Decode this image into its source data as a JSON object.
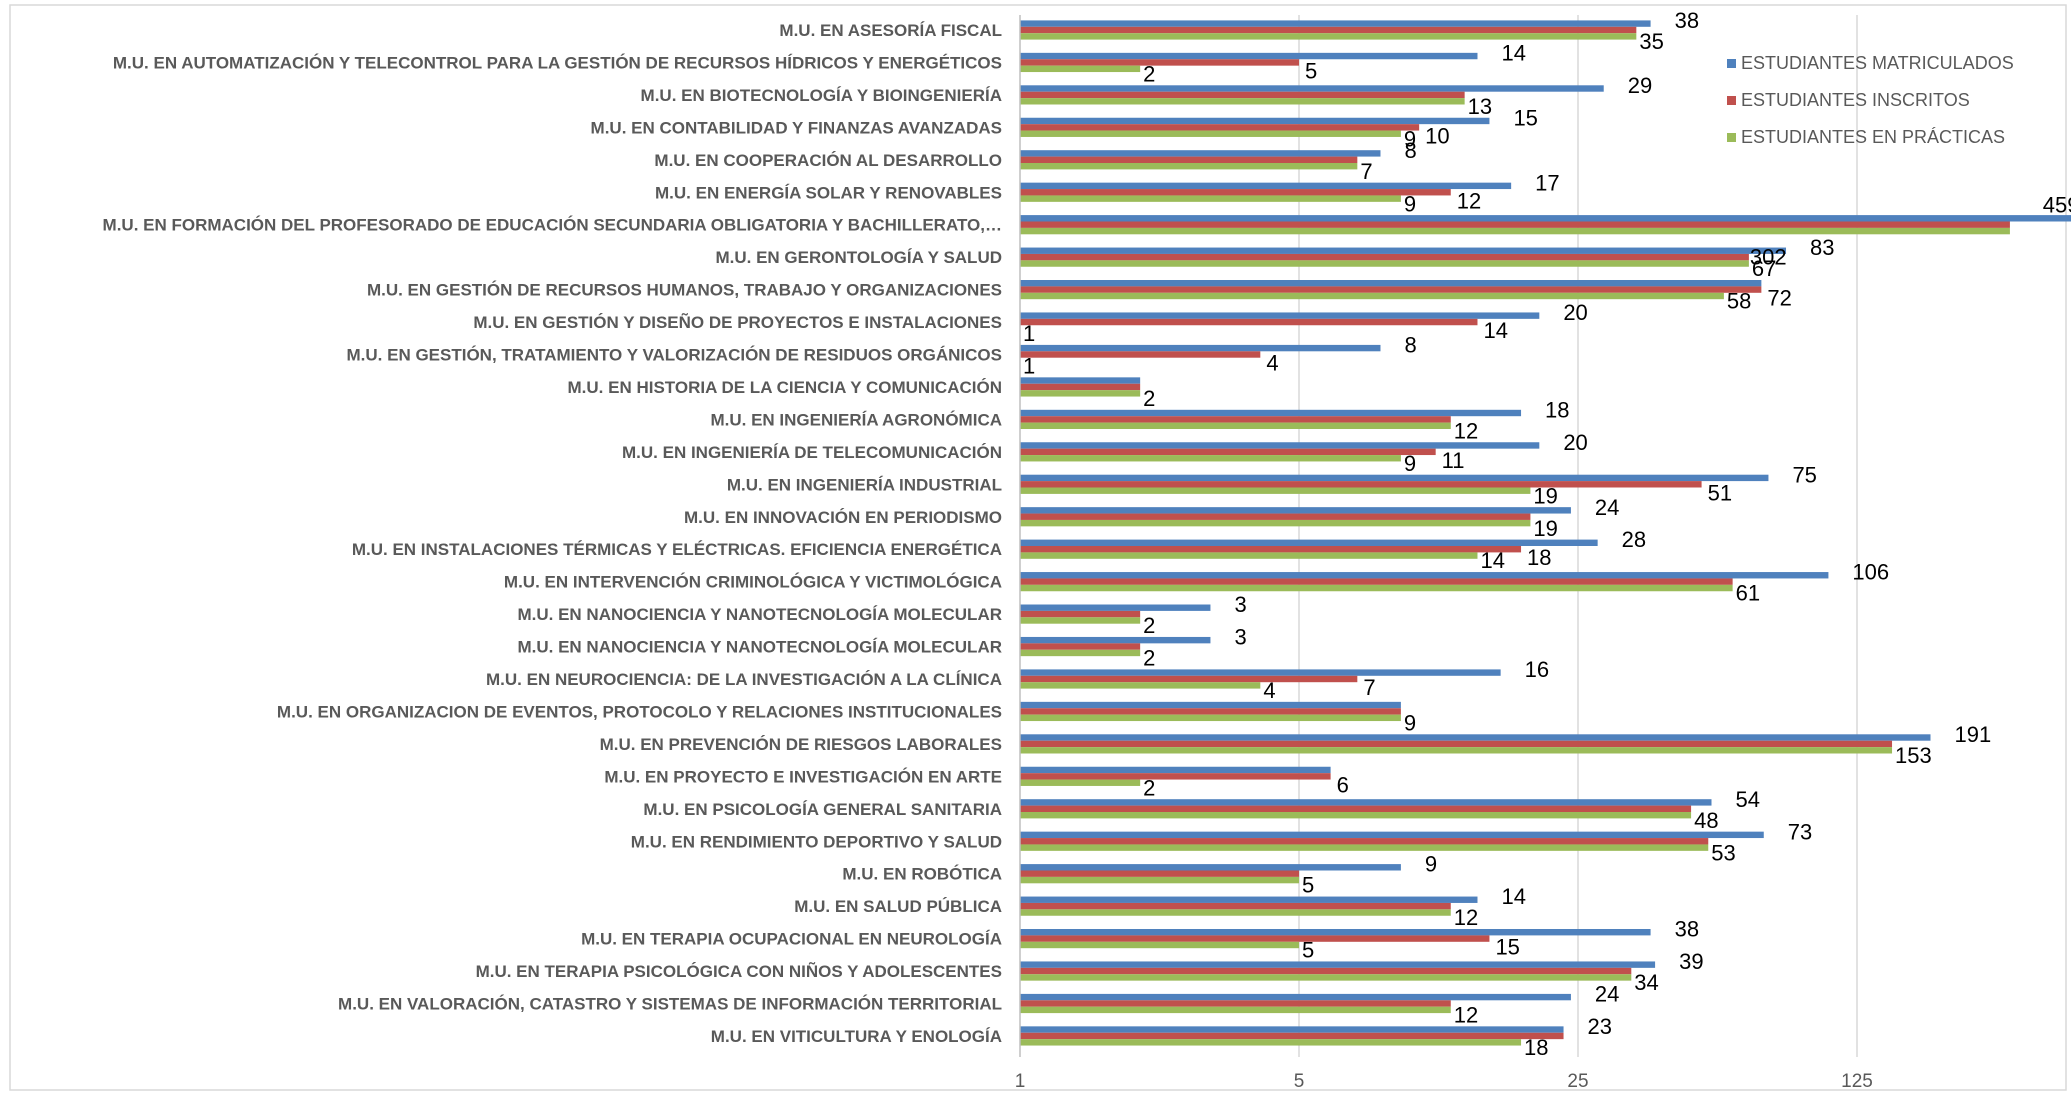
{
  "chart_data": {
    "type": "bar",
    "orientation": "horizontal",
    "x_scale": "log5",
    "xlim": [
      1,
      625
    ],
    "x_ticks": [
      "1",
      "5",
      "25",
      "125"
    ],
    "grid": "vertical",
    "legend_position": "top-right",
    "categories": [
      "M.U. EN ASESORÍA FISCAL",
      "M.U. EN AUTOMATIZACIÓN Y TELECONTROL PARA LA GESTIÓN DE RECURSOS HÍDRICOS Y ENERGÉTICOS",
      "M.U. EN BIOTECNOLOGÍA Y BIOINGENIERÍA",
      "M.U. EN CONTABILIDAD Y FINANZAS AVANZADAS",
      "M.U. EN COOPERACIÓN AL DESARROLLO",
      "M.U. EN ENERGÍA SOLAR Y RENOVABLES",
      "M.U. EN FORMACIÓN DEL PROFESORADO DE EDUCACIÓN SECUNDARIA OBLIGATORIA Y BACHILLERATO,…",
      "M.U. EN GERONTOLOGÍA Y SALUD",
      "M.U. EN GESTIÓN DE RECURSOS HUMANOS, TRABAJO Y ORGANIZACIONES",
      "M.U. EN GESTIÓN Y DISEÑO DE PROYECTOS E INSTALACIONES",
      "M.U. EN GESTIÓN, TRATAMIENTO Y VALORIZACIÓN DE RESIDUOS ORGÁNICOS",
      "M.U. EN HISTORIA DE LA CIENCIA Y COMUNICACIÓN",
      "M.U. EN INGENIERÍA AGRONÓMICA",
      "M.U. EN INGENIERÍA DE TELECOMUNICACIÓN",
      "M.U. EN INGENIERÍA INDUSTRIAL",
      "M.U. EN INNOVACIÓN EN PERIODISMO",
      "M.U. EN INSTALACIONES TÉRMICAS Y ELÉCTRICAS. EFICIENCIA ENERGÉTICA",
      "M.U. EN INTERVENCIÓN CRIMINOLÓGICA Y VICTIMOLÓGICA",
      "M.U. EN NANOCIENCIA Y NANOTECNOLOGÍA MOLECULAR",
      "M.U. EN NANOCIENCIA Y NANOTECNOLOGÍA MOLECULAR",
      "M.U. EN NEUROCIENCIA: DE LA INVESTIGACIÓN A LA CLÍNICA",
      "M.U. EN ORGANIZACION DE EVENTOS, PROTOCOLO Y RELACIONES INSTITUCIONALES",
      "M.U. EN PREVENCIÓN DE RIESGOS LABORALES",
      "M.U. EN PROYECTO E INVESTIGACIÓN EN ARTE",
      "M.U. EN PSICOLOGÍA GENERAL SANITARIA",
      "M.U. EN RENDIMIENTO DEPORTIVO Y SALUD",
      "M.U. EN ROBÓTICA",
      "M.U. EN SALUD PÚBLICA",
      "M.U. EN TERAPIA OCUPACIONAL EN NEUROLOGÍA",
      "M.U. EN TERAPIA PSICOLÓGICA CON NIÑOS Y ADOLESCENTES",
      "M.U. EN VALORACIÓN, CATASTRO Y SISTEMAS DE INFORMACIÓN TERRITORIAL",
      "M.U. EN VITICULTURA Y ENOLOGÍA"
    ],
    "series": [
      {
        "name": "ESTUDIANTES MATRICULADOS",
        "color": "#4F81BD",
        "values": [
          38,
          14,
          29,
          15,
          8,
          17,
          459,
          83,
          72,
          20,
          8,
          2,
          18,
          20,
          75,
          24,
          28,
          106,
          3,
          3,
          16,
          9,
          191,
          6,
          54,
          73,
          9,
          14,
          38,
          39,
          24,
          23
        ]
      },
      {
        "name": "ESTUDIANTES INSCRITOS",
        "color": "#C0504D",
        "values": [
          35,
          5,
          13,
          10,
          7,
          12,
          302,
          67,
          72,
          14,
          4,
          2,
          12,
          11,
          51,
          19,
          18,
          61,
          2,
          2,
          7,
          9,
          153,
          6,
          48,
          53,
          5,
          12,
          15,
          34,
          12,
          23
        ]
      },
      {
        "name": "ESTUDIANTES EN PRÁCTICAS",
        "color": "#9BBB59",
        "values": [
          35,
          2,
          13,
          9,
          7,
          9,
          302,
          67,
          58,
          1,
          1,
          2,
          12,
          9,
          19,
          19,
          14,
          61,
          2,
          2,
          4,
          9,
          153,
          2,
          48,
          53,
          5,
          12,
          5,
          34,
          12,
          18
        ]
      }
    ],
    "value_labels": {
      "ESTUDIANTES MATRICULADOS": [
        "38",
        "14",
        "29",
        "15",
        "8",
        "17",
        "459",
        "83",
        "",
        "20",
        "8",
        "",
        "18",
        "20",
        "75",
        "24",
        "28",
        "106",
        "3",
        "3",
        "16",
        "",
        "191",
        "",
        "54",
        "73",
        "9",
        "14",
        "38",
        "39",
        "24",
        "23"
      ],
      "ESTUDIANTES INSCRITOS": [
        "",
        "5",
        "",
        "10",
        "",
        "12",
        "",
        "",
        "72",
        "14",
        "4",
        "",
        "",
        "11",
        "51",
        "",
        "18",
        "",
        "",
        "",
        "7",
        "",
        "",
        "6",
        "",
        "",
        "",
        "",
        "15",
        "",
        "",
        ""
      ],
      "ESTUDIANTES EN PRÁCTICAS": [
        "35",
        "2",
        "13",
        "9",
        "7",
        "9",
        "302",
        "67",
        "58",
        "1",
        "1",
        "2",
        "12",
        "9",
        "19",
        "19",
        "14",
        "61",
        "2",
        "2",
        "4",
        "9",
        "153",
        "2",
        "48",
        "53",
        "5",
        "12",
        "5",
        "34",
        "12",
        "18"
      ]
    }
  }
}
